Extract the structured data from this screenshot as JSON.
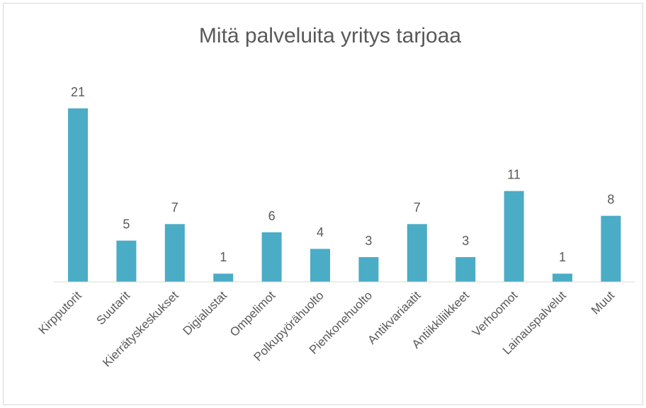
{
  "chart_data": {
    "type": "bar",
    "title": "Mitä palveluita yritys tarjoaa",
    "categories": [
      "Kirpputorit",
      "Suutarit",
      "Kierrätyskeskukset",
      "Digialustat",
      "Ompelimot",
      "Polkupyörähuolto",
      "Pienkonehuolto",
      "Antikvariaatit",
      "Antiikkiliikkeet",
      "Verhoomot",
      "Lainauspalvelut",
      "Muut"
    ],
    "values": [
      21,
      5,
      7,
      1,
      6,
      4,
      3,
      7,
      3,
      11,
      1,
      8
    ],
    "color": "#4bacc6"
  }
}
